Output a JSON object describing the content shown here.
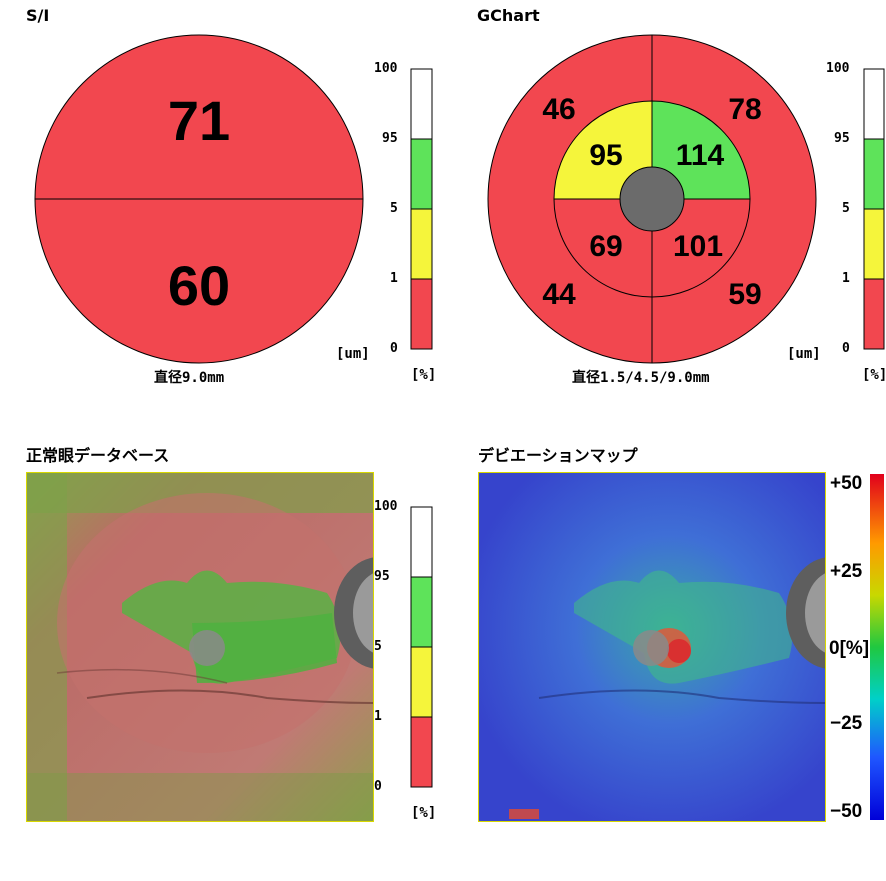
{
  "si_panel": {
    "title": "S/I",
    "superior": "71",
    "inferior": "60",
    "caption": "直径9.0mm"
  },
  "gchart_panel": {
    "title": "GChart",
    "outer_tl": "46",
    "outer_tr": "78",
    "outer_bl": "44",
    "outer_br": "59",
    "inner_tl": "95",
    "inner_tr": "114",
    "inner_bl": "69",
    "inner_br": "101",
    "caption": "直径1.5/4.5/9.0mm"
  },
  "percentile_scale": {
    "ticks": [
      "100",
      "95",
      "5",
      "1",
      "0"
    ],
    "unit": "[%]",
    "um_unit": "[um]"
  },
  "normative_map": {
    "title": "正常眼データベース"
  },
  "deviation_map": {
    "title": "デビエーションマップ",
    "ticks": [
      "+50",
      "+25",
      "0[%]",
      "−25",
      "−50"
    ]
  },
  "colors": {
    "red": "#f2474f",
    "yellow": "#f5f53b",
    "green": "#5ee35a",
    "white": "#ffffff",
    "disc_gray": "#6b6b6b"
  },
  "chart_data": [
    {
      "type": "pie",
      "title": "S/I",
      "categories": [
        "Superior",
        "Inferior"
      ],
      "values": [
        71,
        60
      ],
      "colors": [
        "#f2474f",
        "#f2474f"
      ]
    },
    {
      "type": "pie",
      "title": "GChart",
      "categories": [
        "outer superior-temporal",
        "outer superior-nasal",
        "outer inferior-temporal",
        "outer inferior-nasal",
        "inner superior-temporal",
        "inner superior-nasal",
        "inner inferior-temporal",
        "inner inferior-nasal"
      ],
      "values": [
        46,
        78,
        44,
        59,
        95,
        114,
        69,
        101
      ]
    }
  ]
}
